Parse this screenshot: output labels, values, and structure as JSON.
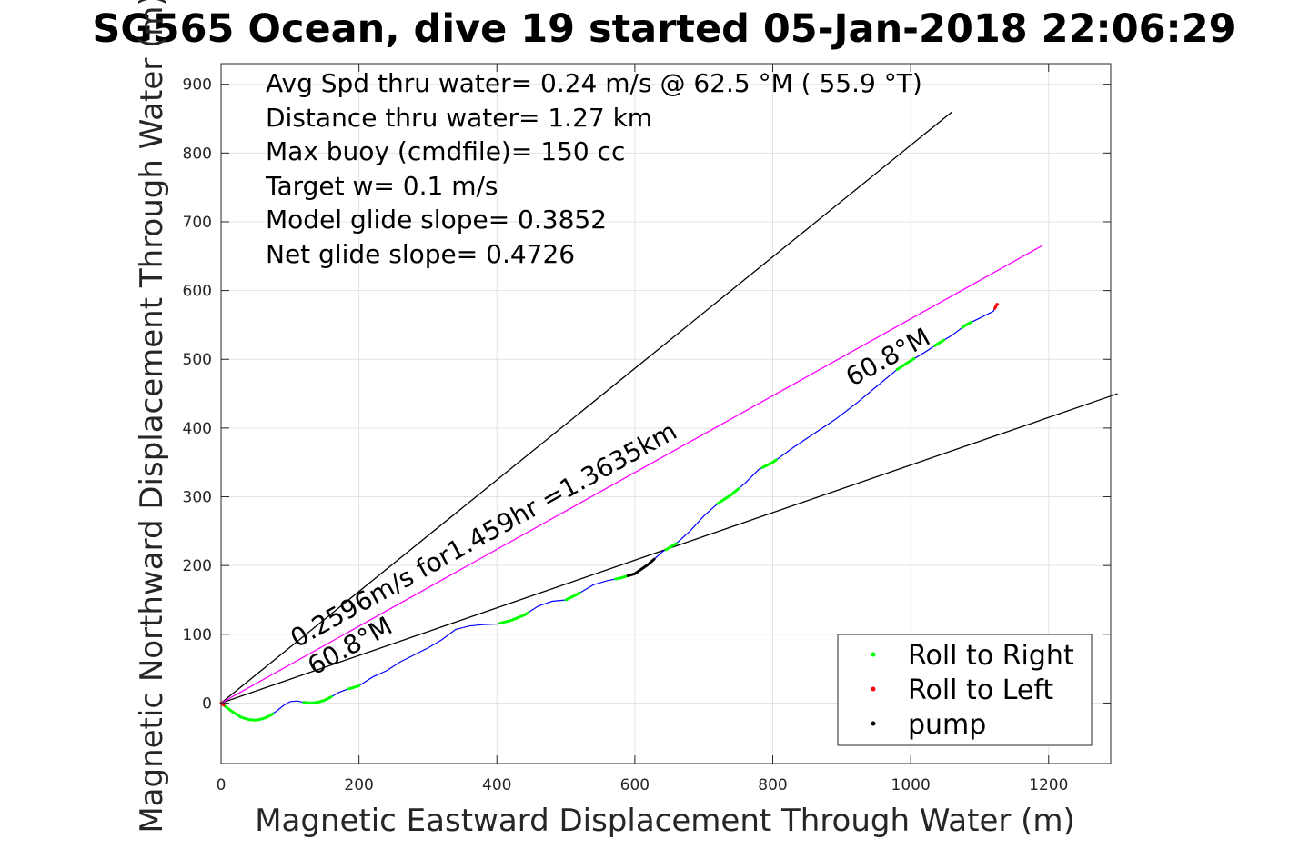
{
  "chart_data": {
    "type": "line",
    "title": "SG565 Ocean, dive 19 started 05-Jan-2018 22:06:29",
    "xlabel": "Magnetic Eastward Displacement Through Water (m)",
    "ylabel": "Magnetic Northward Displacement Through Water (m)",
    "xlim": [
      0,
      1290
    ],
    "ylim": [
      -88,
      930
    ],
    "xticks": [
      0,
      200,
      400,
      600,
      800,
      1000,
      1200
    ],
    "yticks": [
      0,
      100,
      200,
      300,
      400,
      500,
      600,
      700,
      800,
      900
    ],
    "grid": true,
    "info_lines": [
      "Avg Spd thru water=  0.24 m/s @  62.5 °M ( 55.9 °T)",
      "Distance thru water=  1.27 km",
      "Max buoy (cmdfile)= 150 cc",
      "Target w= 0.1 m/s",
      "Model glide slope= 0.3852",
      "Net glide slope= 0.4726"
    ],
    "annotations": [
      {
        "text": "0.2596m/s for1.459hr =1.3635km",
        "x": 110,
        "y": 80,
        "angle_deg": 29
      },
      {
        "text": "60.8°M",
        "x": 135,
        "y": 40,
        "angle_deg": 29
      },
      {
        "text": "60.8°M",
        "x": 915,
        "y": 460,
        "angle_deg": 29
      }
    ],
    "reference_lines": [
      {
        "color": "#000000",
        "x": [
          0,
          1060
        ],
        "y": [
          0,
          860
        ]
      },
      {
        "color": "#000000",
        "x": [
          0,
          1300
        ],
        "y": [
          0,
          450
        ]
      },
      {
        "color": "#ff00ff",
        "x": [
          0,
          1190
        ],
        "y": [
          0,
          665
        ]
      }
    ],
    "track": {
      "color": "#0000ff",
      "x": [
        0,
        10,
        20,
        30,
        40,
        50,
        60,
        70,
        80,
        90,
        100,
        110,
        120,
        130,
        140,
        150,
        160,
        170,
        180,
        190,
        200,
        220,
        240,
        260,
        280,
        300,
        320,
        340,
        360,
        380,
        400,
        420,
        440,
        460,
        480,
        500,
        520,
        540,
        560,
        580,
        600,
        620,
        640,
        660,
        680,
        700,
        720,
        740,
        760,
        780,
        800,
        830,
        860,
        890,
        920,
        950,
        980,
        1000,
        1020,
        1040,
        1060,
        1080,
        1100,
        1120,
        1125
      ],
      "y": [
        0,
        -8,
        -15,
        -21,
        -24,
        -25,
        -23,
        -19,
        -12,
        -4,
        2,
        3,
        1,
        0,
        1,
        4,
        9,
        15,
        19,
        22,
        25,
        38,
        47,
        60,
        70,
        80,
        92,
        107,
        112,
        114,
        115,
        120,
        128,
        141,
        148,
        150,
        160,
        172,
        178,
        182,
        188,
        202,
        220,
        232,
        250,
        272,
        290,
        303,
        320,
        340,
        350,
        372,
        392,
        412,
        435,
        460,
        485,
        498,
        510,
        523,
        535,
        550,
        560,
        570,
        580
      ]
    },
    "segments": [
      {
        "name": "Roll to Right",
        "color": "#00ff00",
        "x_ranges": [
          [
            0,
            75
          ],
          [
            120,
            160
          ],
          [
            185,
            200
          ],
          [
            405,
            445
          ],
          [
            500,
            520
          ],
          [
            572,
            590
          ],
          [
            645,
            660
          ],
          [
            720,
            750
          ],
          [
            785,
            805
          ],
          [
            980,
            1005
          ],
          [
            1035,
            1048
          ],
          [
            1075,
            1088
          ]
        ]
      },
      {
        "name": "Roll to Left",
        "color": "#ff0000",
        "x_ranges": [
          [
            0,
            4
          ],
          [
            1122,
            1126
          ]
        ]
      },
      {
        "name": "pump",
        "color": "#000000",
        "x_ranges": [
          [
            590,
            628
          ]
        ]
      }
    ],
    "legend": {
      "position": "bottom-right",
      "entries": [
        {
          "label": "Roll to Right",
          "color": "#00ff00"
        },
        {
          "label": "Roll to Left",
          "color": "#ff0000"
        },
        {
          "label": "pump",
          "color": "#000000"
        }
      ]
    }
  }
}
